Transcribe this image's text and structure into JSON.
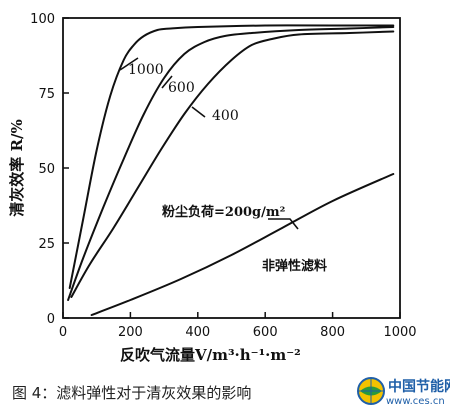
{
  "chart_data": {
    "type": "line",
    "xlabel": "反吹气流量V/m³·h⁻¹·m⁻²",
    "ylabel": "清灰效率 R/%",
    "xlim": [
      0,
      1000
    ],
    "ylim": [
      0,
      100
    ],
    "xticks": [
      0,
      200,
      400,
      600,
      800,
      1000
    ],
    "yticks": [
      0,
      25,
      50,
      75,
      100
    ],
    "series": [
      {
        "name": "1000",
        "x": [
          20,
          60,
          100,
          140,
          180,
          210,
          240,
          280,
          320,
          400,
          600,
          800,
          980
        ],
        "y": [
          10,
          33,
          56,
          74,
          86,
          91,
          94,
          96,
          96.5,
          97,
          97.5,
          97.5,
          97.5
        ]
      },
      {
        "name": "600",
        "x": [
          15,
          60,
          120,
          180,
          240,
          300,
          360,
          420,
          480,
          560,
          700,
          850,
          980
        ],
        "y": [
          6,
          20,
          37,
          53,
          68,
          80,
          88,
          92,
          94,
          95,
          96,
          96.5,
          97
        ]
      },
      {
        "name": "400",
        "x": [
          25,
          80,
          150,
          220,
          290,
          360,
          430,
          500,
          560,
          620,
          700,
          850,
          980
        ],
        "y": [
          7,
          18,
          30,
          43,
          56,
          68,
          78,
          86,
          91,
          93,
          94.5,
          95,
          95.5
        ]
      },
      {
        "name": "非弹性滤料",
        "x": [
          85,
          200,
          350,
          500,
          650,
          800,
          980
        ],
        "y": [
          1,
          6,
          13,
          21,
          30,
          39,
          48
        ]
      }
    ],
    "annotations": [
      "粉尘负荷=200g/m²",
      "非弹性滤料"
    ]
  },
  "caption": "图 4：滤料弹性对于清灰效果的影响",
  "watermark": {
    "name": "中国节能网",
    "url": "www.ces.cn"
  }
}
